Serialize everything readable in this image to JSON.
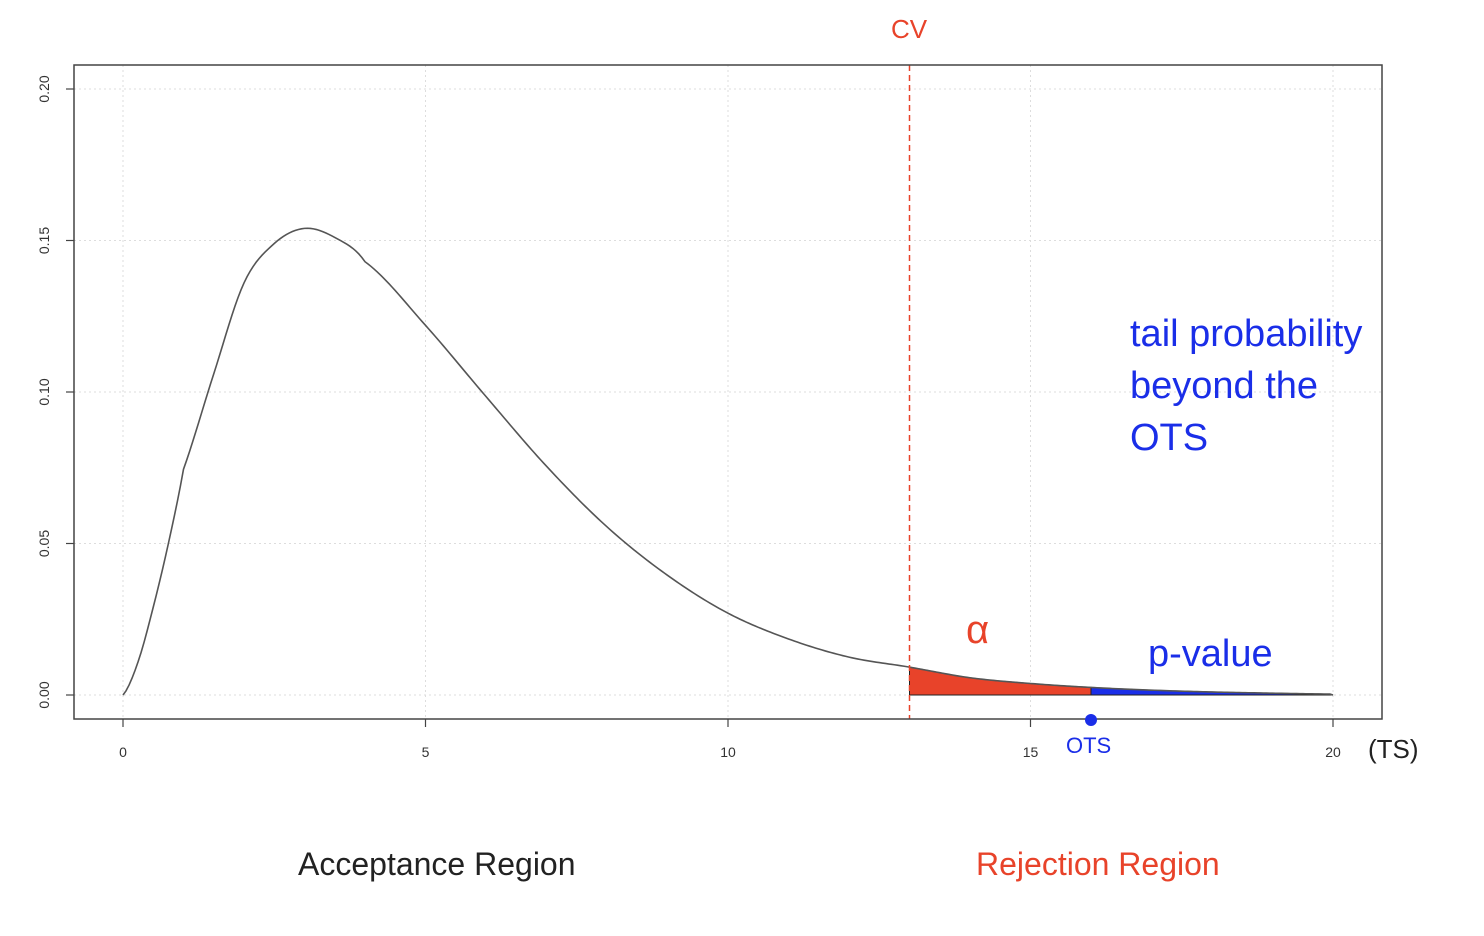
{
  "chart_data": {
    "type": "area",
    "distribution_curve": "density",
    "xlim": [
      0,
      20
    ],
    "ylim": [
      0,
      0.2
    ],
    "x_ticks": [
      "0",
      "5",
      "10",
      "15",
      "20"
    ],
    "y_ticks": [
      "0.00",
      "0.05",
      "0.10",
      "0.15",
      "0.20"
    ],
    "x_unit_label": "(TS)",
    "grid": true,
    "curve_points": [
      [
        0,
        0.0
      ],
      [
        0.25,
        0.011
      ],
      [
        0.5,
        0.029
      ],
      [
        0.75,
        0.05
      ],
      [
        1.0,
        0.0745
      ],
      [
        1.5,
        0.106
      ],
      [
        2.0,
        0.136
      ],
      [
        2.5,
        0.149
      ],
      [
        3.0,
        0.154
      ],
      [
        3.5,
        0.151
      ],
      [
        4.0,
        0.143
      ],
      [
        5.0,
        0.122
      ],
      [
        6.0,
        0.0985
      ],
      [
        7.0,
        0.0755
      ],
      [
        8.0,
        0.0555
      ],
      [
        9.0,
        0.0395
      ],
      [
        10.0,
        0.027
      ],
      [
        11.0,
        0.0185
      ],
      [
        12.0,
        0.0125
      ],
      [
        13.0,
        0.0092
      ],
      [
        14.0,
        0.0057
      ],
      [
        15.0,
        0.0038
      ],
      [
        16.0,
        0.0025
      ],
      [
        17.0,
        0.0016
      ],
      [
        18.0,
        0.001
      ],
      [
        19.0,
        0.0006
      ],
      [
        20.0,
        0.0003
      ]
    ],
    "critical_value_x": 13,
    "observed_test_statistic_x": 16,
    "colors": {
      "curve": "#555555",
      "critical_line": "#e8432a",
      "alpha_area": "#e8432a",
      "pvalue_area": "#1a2ee8",
      "ots_point": "#1a2ee8",
      "grid": "#dddddd"
    }
  },
  "labels": {
    "cv": "CV",
    "alpha": "α",
    "p_value": "p-value",
    "tail_note": "tail probability beyond the OTS",
    "ots": "OTS",
    "ts_unit": "(TS)",
    "acceptance_region": "Acceptance Region",
    "rejection_region": "Rejection Region"
  }
}
